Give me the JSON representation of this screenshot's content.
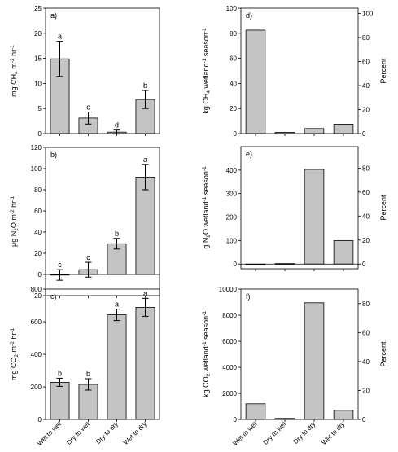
{
  "colors": {
    "bar_fill": "#c4c4c4",
    "bar_stroke": "#000000",
    "axis": "#000000"
  },
  "chart_data": [
    {
      "panel": "a)",
      "type": "bar",
      "title": "",
      "xlabel": "",
      "ylabel_parts": [
        [
          "mg CH",
          ""
        ],
        [
          "4",
          "sub"
        ],
        [
          " m",
          ""
        ],
        [
          "-2",
          "sup"
        ],
        [
          " hr",
          ""
        ],
        [
          "-1",
          "sup"
        ]
      ],
      "categories": [
        "Wet to wet",
        "Dry to wet",
        "Dry to dry",
        "Wet to dry"
      ],
      "values": [
        14.9,
        3.1,
        0.3,
        6.8
      ],
      "errors": [
        3.5,
        1.2,
        0.4,
        1.8
      ],
      "letters": [
        "a",
        "c",
        "d",
        "b"
      ],
      "ylim": [
        0,
        25
      ],
      "yticks": [
        0,
        5,
        10,
        15,
        20,
        25
      ],
      "right_axis": null
    },
    {
      "panel": "b)",
      "type": "bar",
      "title": "",
      "xlabel": "",
      "ylabel_parts": [
        [
          "μg N",
          ""
        ],
        [
          "2",
          "sub"
        ],
        [
          "O m",
          ""
        ],
        [
          "-2",
          "sup"
        ],
        [
          " hr",
          ""
        ],
        [
          "-1",
          "sup"
        ]
      ],
      "categories": [
        "Wet to wet",
        "Dry to wet",
        "Dry to dry",
        "Wet to dry"
      ],
      "values": [
        -0.5,
        4.5,
        29,
        92
      ],
      "errors": [
        5,
        7,
        5,
        12
      ],
      "letters": [
        "c",
        "c",
        "b",
        "a"
      ],
      "ylim": [
        -20,
        120
      ],
      "yticks": [
        -20,
        0,
        20,
        40,
        60,
        80,
        100,
        120
      ],
      "right_axis": null
    },
    {
      "panel": "c)",
      "type": "bar",
      "title": "",
      "xlabel": "",
      "ylabel_parts": [
        [
          "mg CO",
          ""
        ],
        [
          "2",
          "sub"
        ],
        [
          " m",
          ""
        ],
        [
          "-2",
          "sup"
        ],
        [
          " hr",
          ""
        ],
        [
          "-1",
          "sup"
        ]
      ],
      "categories": [
        "Wet to wet",
        "Dry to wet",
        "Dry to dry",
        "Wet to dry"
      ],
      "values": [
        228,
        215,
        642,
        688
      ],
      "errors": [
        25,
        35,
        35,
        55
      ],
      "letters": [
        "b",
        "b",
        "a",
        "a"
      ],
      "ylim": [
        0,
        800
      ],
      "yticks": [
        0,
        200,
        400,
        600,
        800
      ],
      "right_axis": null
    },
    {
      "panel": "d)",
      "type": "bar",
      "title": "",
      "xlabel": "",
      "ylabel_parts": [
        [
          "kg CH",
          ""
        ],
        [
          "4",
          "sub"
        ],
        [
          " wetland",
          ""
        ],
        [
          "-1",
          "sup"
        ],
        [
          " season",
          ""
        ],
        [
          "-1",
          "sup"
        ]
      ],
      "categories": [
        "Wet to wet",
        "Dry to wet",
        "Dry to dry",
        "Wet to dry"
      ],
      "values": [
        82.5,
        1,
        4,
        7.5
      ],
      "errors": [],
      "letters": [],
      "ylim": [
        0,
        100
      ],
      "yticks": [
        0,
        20,
        40,
        60,
        80,
        100
      ],
      "right_axis": {
        "label": "Percent",
        "ticks": [
          0,
          20,
          40,
          60,
          80,
          100
        ],
        "max": 104.5
      }
    },
    {
      "panel": "e)",
      "type": "bar",
      "title": "",
      "xlabel": "",
      "ylabel_parts": [
        [
          "g N",
          ""
        ],
        [
          "2",
          "sub"
        ],
        [
          "O wetland",
          ""
        ],
        [
          "-1",
          "sup"
        ],
        [
          " season",
          ""
        ],
        [
          "-1",
          "sup"
        ]
      ],
      "categories": [
        "Wet to wet",
        "Dry to wet",
        "Dry to dry",
        "Wet to dry"
      ],
      "values": [
        -3,
        2,
        403,
        100
      ],
      "errors": [],
      "letters": [],
      "ylim": [
        -20,
        500
      ],
      "yticks": [
        0,
        100,
        200,
        300,
        400
      ],
      "right_axis": {
        "label": "Percent",
        "ticks": [
          0,
          20,
          40,
          60,
          80
        ],
        "max": 98
      }
    },
    {
      "panel": "f)",
      "type": "bar",
      "title": "",
      "xlabel": "",
      "ylabel_parts": [
        [
          "kg CO",
          ""
        ],
        [
          "2",
          "sub"
        ],
        [
          " wetland",
          ""
        ],
        [
          "-1",
          "sup"
        ],
        [
          " season",
          ""
        ],
        [
          "-1",
          "sup"
        ]
      ],
      "categories": [
        "Wet to wet",
        "Dry to wet",
        "Dry to dry",
        "Wet to dry"
      ],
      "values": [
        1200,
        80,
        8950,
        700
      ],
      "errors": [],
      "letters": [],
      "ylim": [
        0,
        10000
      ],
      "yticks": [
        0,
        2000,
        4000,
        6000,
        8000,
        10000
      ],
      "right_axis": {
        "label": "Percent",
        "ticks": [
          0,
          20,
          40,
          60,
          80
        ],
        "max": 90
      }
    }
  ]
}
